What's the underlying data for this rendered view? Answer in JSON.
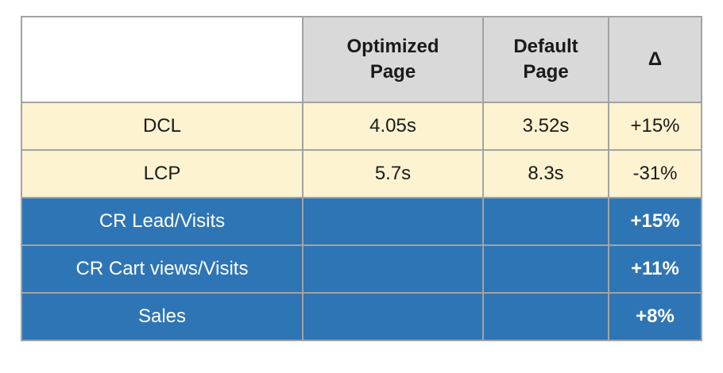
{
  "chart_data": {
    "type": "table",
    "columns": [
      "",
      "Optimized Page",
      "Default Page",
      "Δ"
    ],
    "rows": [
      [
        "DCL",
        "4.05s",
        "3.52s",
        "+15%"
      ],
      [
        "LCP",
        "5.7s",
        "8.3s",
        "-31%"
      ],
      [
        "CR Lead/Visits",
        "",
        "",
        "+15%"
      ],
      [
        "CR Cart views/Visits",
        "",
        "",
        "+11%"
      ],
      [
        "Sales",
        "",
        "",
        "+8%"
      ]
    ],
    "title": "",
    "layout_hints": "header row gray; first two data rows cream with black text; last three rows blue with white text and bold delta values"
  },
  "table": {
    "header_labels": [
      "",
      "Optimized\nPage",
      "Default\nPage",
      "Δ"
    ],
    "rows": [
      {
        "label": "DCL",
        "optimized": "4.05s",
        "default": "3.52s",
        "delta": "+15%"
      },
      {
        "label": "LCP",
        "optimized": "5.7s",
        "default": "8.3s",
        "delta": "-31%"
      },
      {
        "label": "CR Lead/Visits",
        "optimized": "",
        "default": "",
        "delta": "+15%"
      },
      {
        "label": "CR Cart views/Visits",
        "optimized": "",
        "default": "",
        "delta": "+11%"
      },
      {
        "label": "Sales",
        "optimized": "",
        "default": "",
        "delta": "+8%"
      }
    ],
    "colors": {
      "header_bg": "#d9d9d9",
      "cream_row_bg": "#fdf3d0",
      "blue_row_bg": "#2e75b6",
      "border": "#a3a3a3",
      "blue_row_text": "#ffffff",
      "body_text": "#1a1a1a"
    }
  }
}
